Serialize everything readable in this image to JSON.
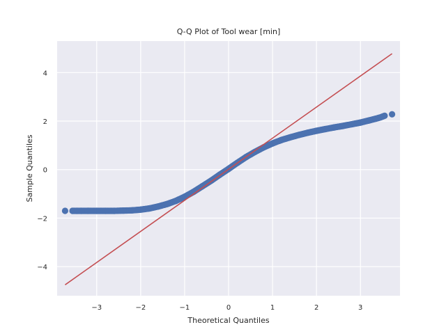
{
  "chart_data": {
    "type": "scatter",
    "title": "Q-Q Plot of Tool wear [min]",
    "xlabel": "Theoretical Quantiles",
    "ylabel": "Sample Quantiles",
    "xlim": [
      -3.9,
      3.9
    ],
    "ylim": [
      -5.2,
      5.3
    ],
    "xticks": [
      -3,
      -2,
      -1,
      0,
      1,
      2,
      3
    ],
    "yticks": [
      -4,
      -2,
      0,
      2,
      4
    ],
    "xtick_labels": [
      "−3",
      "−2",
      "−1",
      "0",
      "1",
      "2",
      "3"
    ],
    "ytick_labels": [
      "−4",
      "−2",
      "0",
      "2",
      "4"
    ],
    "grid": true,
    "colors": {
      "background": "#eaeaf2",
      "grid": "#ffffff",
      "points": "#4c72b0",
      "reference_line": "#c44e52"
    },
    "reference_line": {
      "points": [
        [
          -3.719,
          -4.75
        ],
        [
          3.719,
          4.78
        ]
      ]
    },
    "series": [
      {
        "values_x": [
          -3.719,
          -3.55,
          -3.45,
          -3.35,
          -3.2,
          -3.0,
          -2.8,
          -2.6,
          -2.4,
          -2.2,
          -2.0,
          -1.8,
          -1.6,
          -1.4,
          -1.2,
          -1.0,
          -0.8,
          -0.6,
          -0.4,
          -0.2,
          0.0,
          0.2,
          0.4,
          0.6,
          0.8,
          1.0,
          1.2,
          1.4,
          1.6,
          1.8,
          2.0,
          2.2,
          2.4,
          2.6,
          2.8,
          3.0,
          3.2,
          3.35,
          3.45,
          3.55,
          3.719
        ],
        "values_y": [
          -1.7,
          -1.7,
          -1.7,
          -1.7,
          -1.7,
          -1.7,
          -1.7,
          -1.7,
          -1.69,
          -1.68,
          -1.65,
          -1.6,
          -1.52,
          -1.42,
          -1.29,
          -1.12,
          -0.92,
          -0.69,
          -0.46,
          -0.21,
          0.03,
          0.28,
          0.52,
          0.73,
          0.92,
          1.08,
          1.22,
          1.33,
          1.43,
          1.52,
          1.6,
          1.67,
          1.74,
          1.8,
          1.87,
          1.94,
          2.03,
          2.1,
          2.15,
          2.22,
          2.28
        ]
      }
    ]
  }
}
